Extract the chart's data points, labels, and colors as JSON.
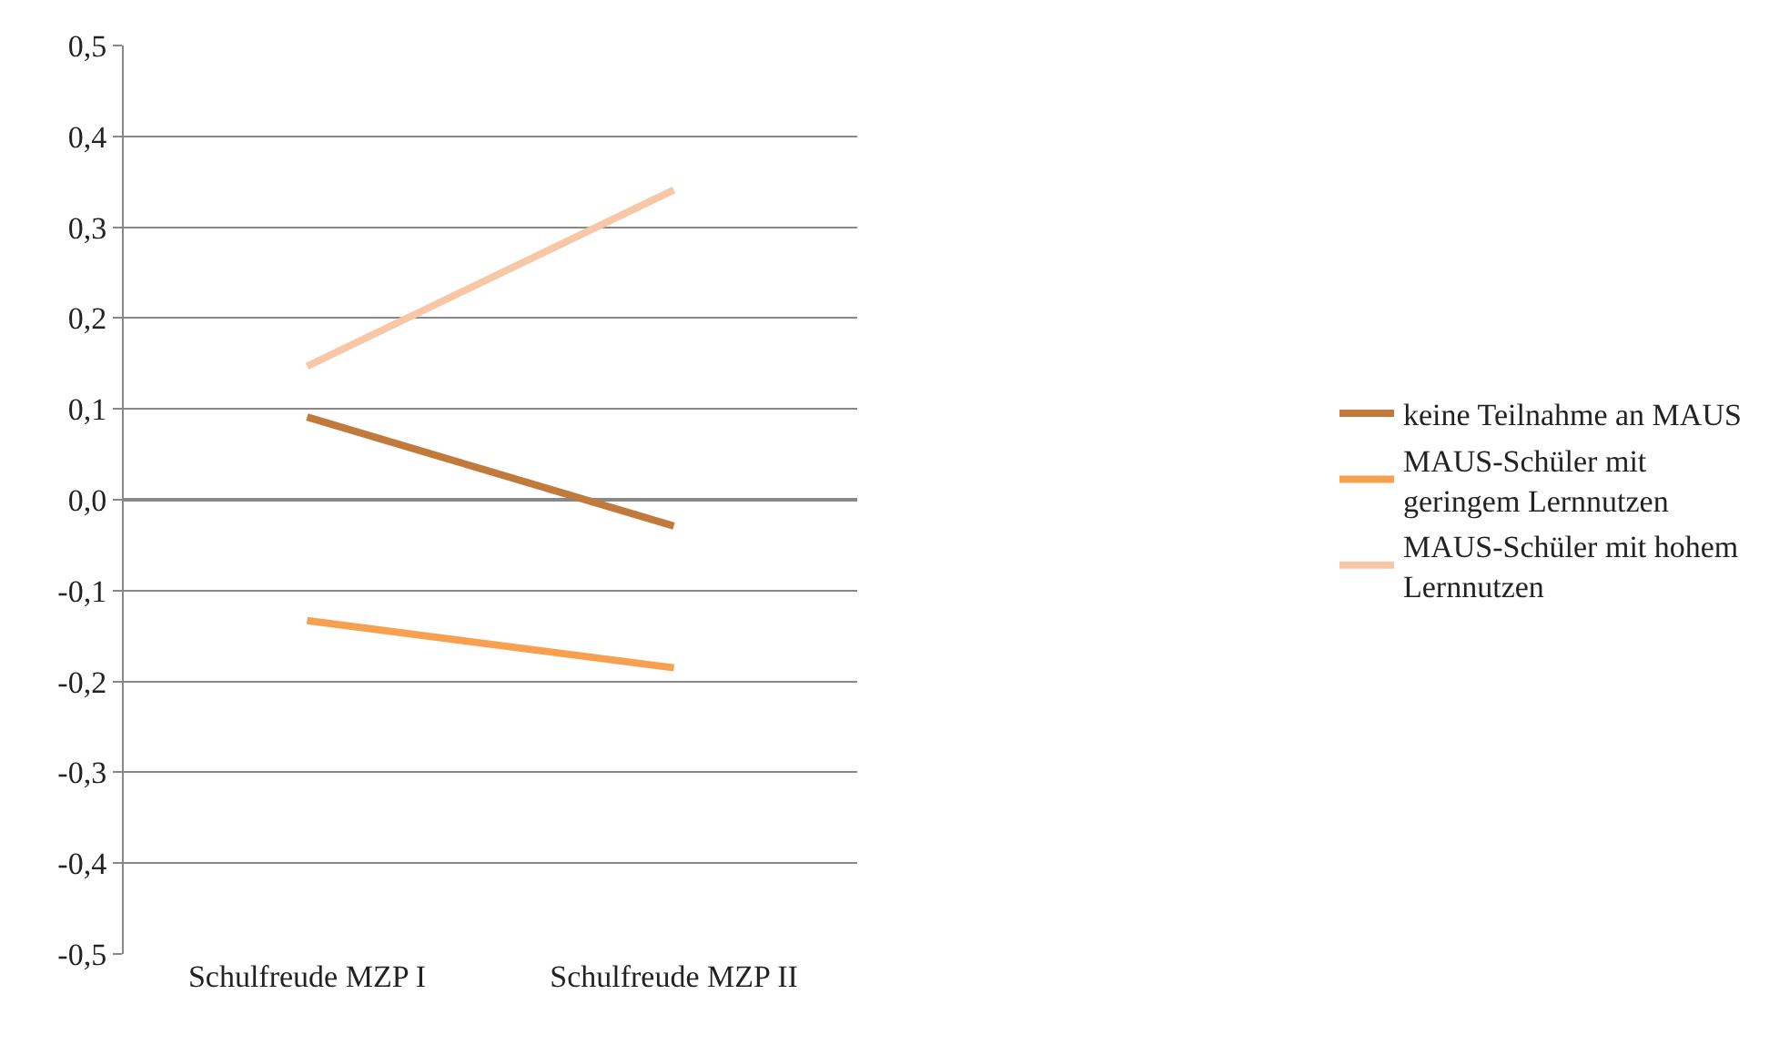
{
  "chart_data": {
    "type": "line",
    "categories": [
      "Schulfreude MZP I",
      "Schulfreude MZP II"
    ],
    "series": [
      {
        "name": "keine Teilnahme an MAUS",
        "color": "#c27a3c",
        "values": [
          0.091,
          -0.029
        ]
      },
      {
        "name": "MAUS-Schüler mit geringem Lernnutzen",
        "color": "#f7a04f",
        "values": [
          -0.133,
          -0.185
        ]
      },
      {
        "name": "MAUS-Schüler mit hohem Lernnutzen",
        "color": "#f7c7a6",
        "values": [
          0.147,
          0.341
        ]
      }
    ],
    "ylim": [
      -0.5,
      0.5
    ],
    "yticks": [
      {
        "value": -0.5,
        "label": "-0,5"
      },
      {
        "value": -0.4,
        "label": "-0,4"
      },
      {
        "value": -0.3,
        "label": "-0,3"
      },
      {
        "value": -0.2,
        "label": "-0,2"
      },
      {
        "value": -0.1,
        "label": "-0,1"
      },
      {
        "value": 0,
        "label": "0,0"
      },
      {
        "value": 0.1,
        "label": "0,1"
      },
      {
        "value": 0.2,
        "label": "0,2"
      },
      {
        "value": 0.3,
        "label": "0,3"
      },
      {
        "value": 0.4,
        "label": "0,4"
      },
      {
        "value": 0.5,
        "label": "0,5"
      }
    ],
    "grid": "y",
    "legend": "right",
    "marker": "none",
    "line_style": "solid"
  }
}
